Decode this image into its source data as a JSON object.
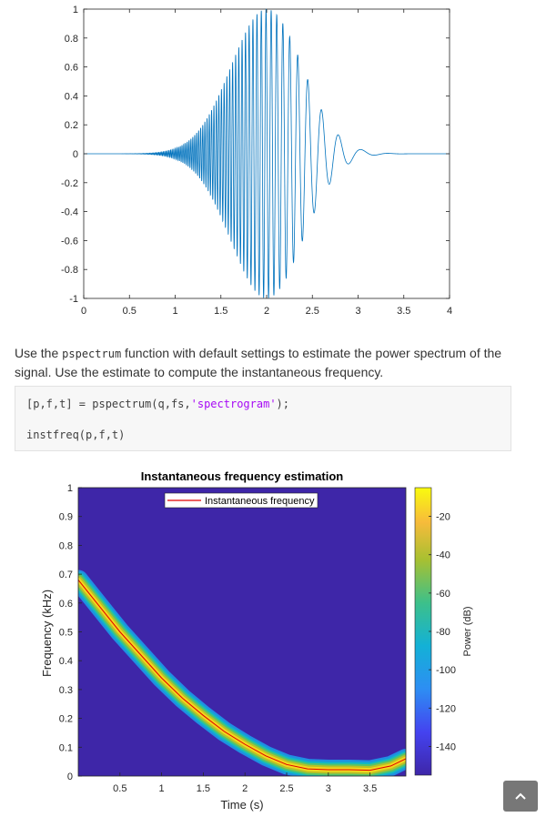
{
  "intro": {
    "before": "Use the ",
    "code": "pspectrum",
    "after": " function with default settings to estimate the power spectrum of the signal. Use the estimate to compute the instantaneous frequency."
  },
  "code": {
    "line1_before": "[p,f,t] = pspectrum(q,fs,",
    "line1_string": "'spectrogram'",
    "line1_after": ");",
    "line2": "instfreq(p,f,t)"
  },
  "chart_data": [
    {
      "type": "line",
      "title": "",
      "xlabel": "",
      "ylabel": "",
      "xlim": [
        0,
        4
      ],
      "ylim": [
        -1,
        1
      ],
      "xticks": [
        "0",
        "0.5",
        "1",
        "1.5",
        "2",
        "2.5",
        "3",
        "3.5",
        "4"
      ],
      "yticks": [
        "-1",
        "-0.8",
        "-0.6",
        "-0.4",
        "-0.2",
        "0",
        "0.2",
        "0.4",
        "0.6",
        "0.8",
        "1"
      ],
      "color": "#0072BD",
      "envelope": {
        "shape": "gaussian",
        "peak_time": 2.0,
        "peak_amplitude": 1.0
      },
      "instantaneous_frequency_khz": {
        "t": [
          0,
          0.5,
          1,
          1.5,
          2,
          2.5,
          3,
          3.5,
          4
        ],
        "f": [
          0.68,
          0.5,
          0.34,
          0.21,
          0.11,
          0.04,
          0.02,
          0.02,
          0.06
        ]
      }
    },
    {
      "type": "heatmap",
      "title": "Instantaneous frequency estimation",
      "xlabel": "Time (s)",
      "ylabel": "Frequency (kHz)",
      "xlim": [
        0,
        4
      ],
      "ylim": [
        0,
        1
      ],
      "xticks": [
        "0.5",
        "1",
        "1.5",
        "2",
        "2.5",
        "3",
        "3.5"
      ],
      "yticks": [
        "0",
        "0.1",
        "0.2",
        "0.3",
        "0.4",
        "0.5",
        "0.6",
        "0.7",
        "0.8",
        "0.9",
        "1"
      ],
      "colorbar": {
        "label": "Power (dB)",
        "ticks": [
          "-20",
          "-40",
          "-60",
          "-80",
          "-100",
          "-120",
          "-140"
        ],
        "range": [
          -155,
          -5
        ]
      },
      "legend": {
        "position": "top",
        "entries": [
          "Instantaneous frequency"
        ]
      },
      "series": [
        {
          "name": "Instantaneous frequency",
          "color": "#e00000",
          "x": [
            0,
            0.25,
            0.5,
            0.75,
            1.0,
            1.25,
            1.5,
            1.75,
            2.0,
            2.25,
            2.5,
            2.75,
            3.0,
            3.25,
            3.5,
            3.75,
            3.93
          ],
          "y": [
            0.68,
            0.59,
            0.5,
            0.42,
            0.34,
            0.27,
            0.21,
            0.155,
            0.11,
            0.07,
            0.04,
            0.025,
            0.022,
            0.022,
            0.02,
            0.035,
            0.06
          ]
        }
      ]
    }
  ]
}
